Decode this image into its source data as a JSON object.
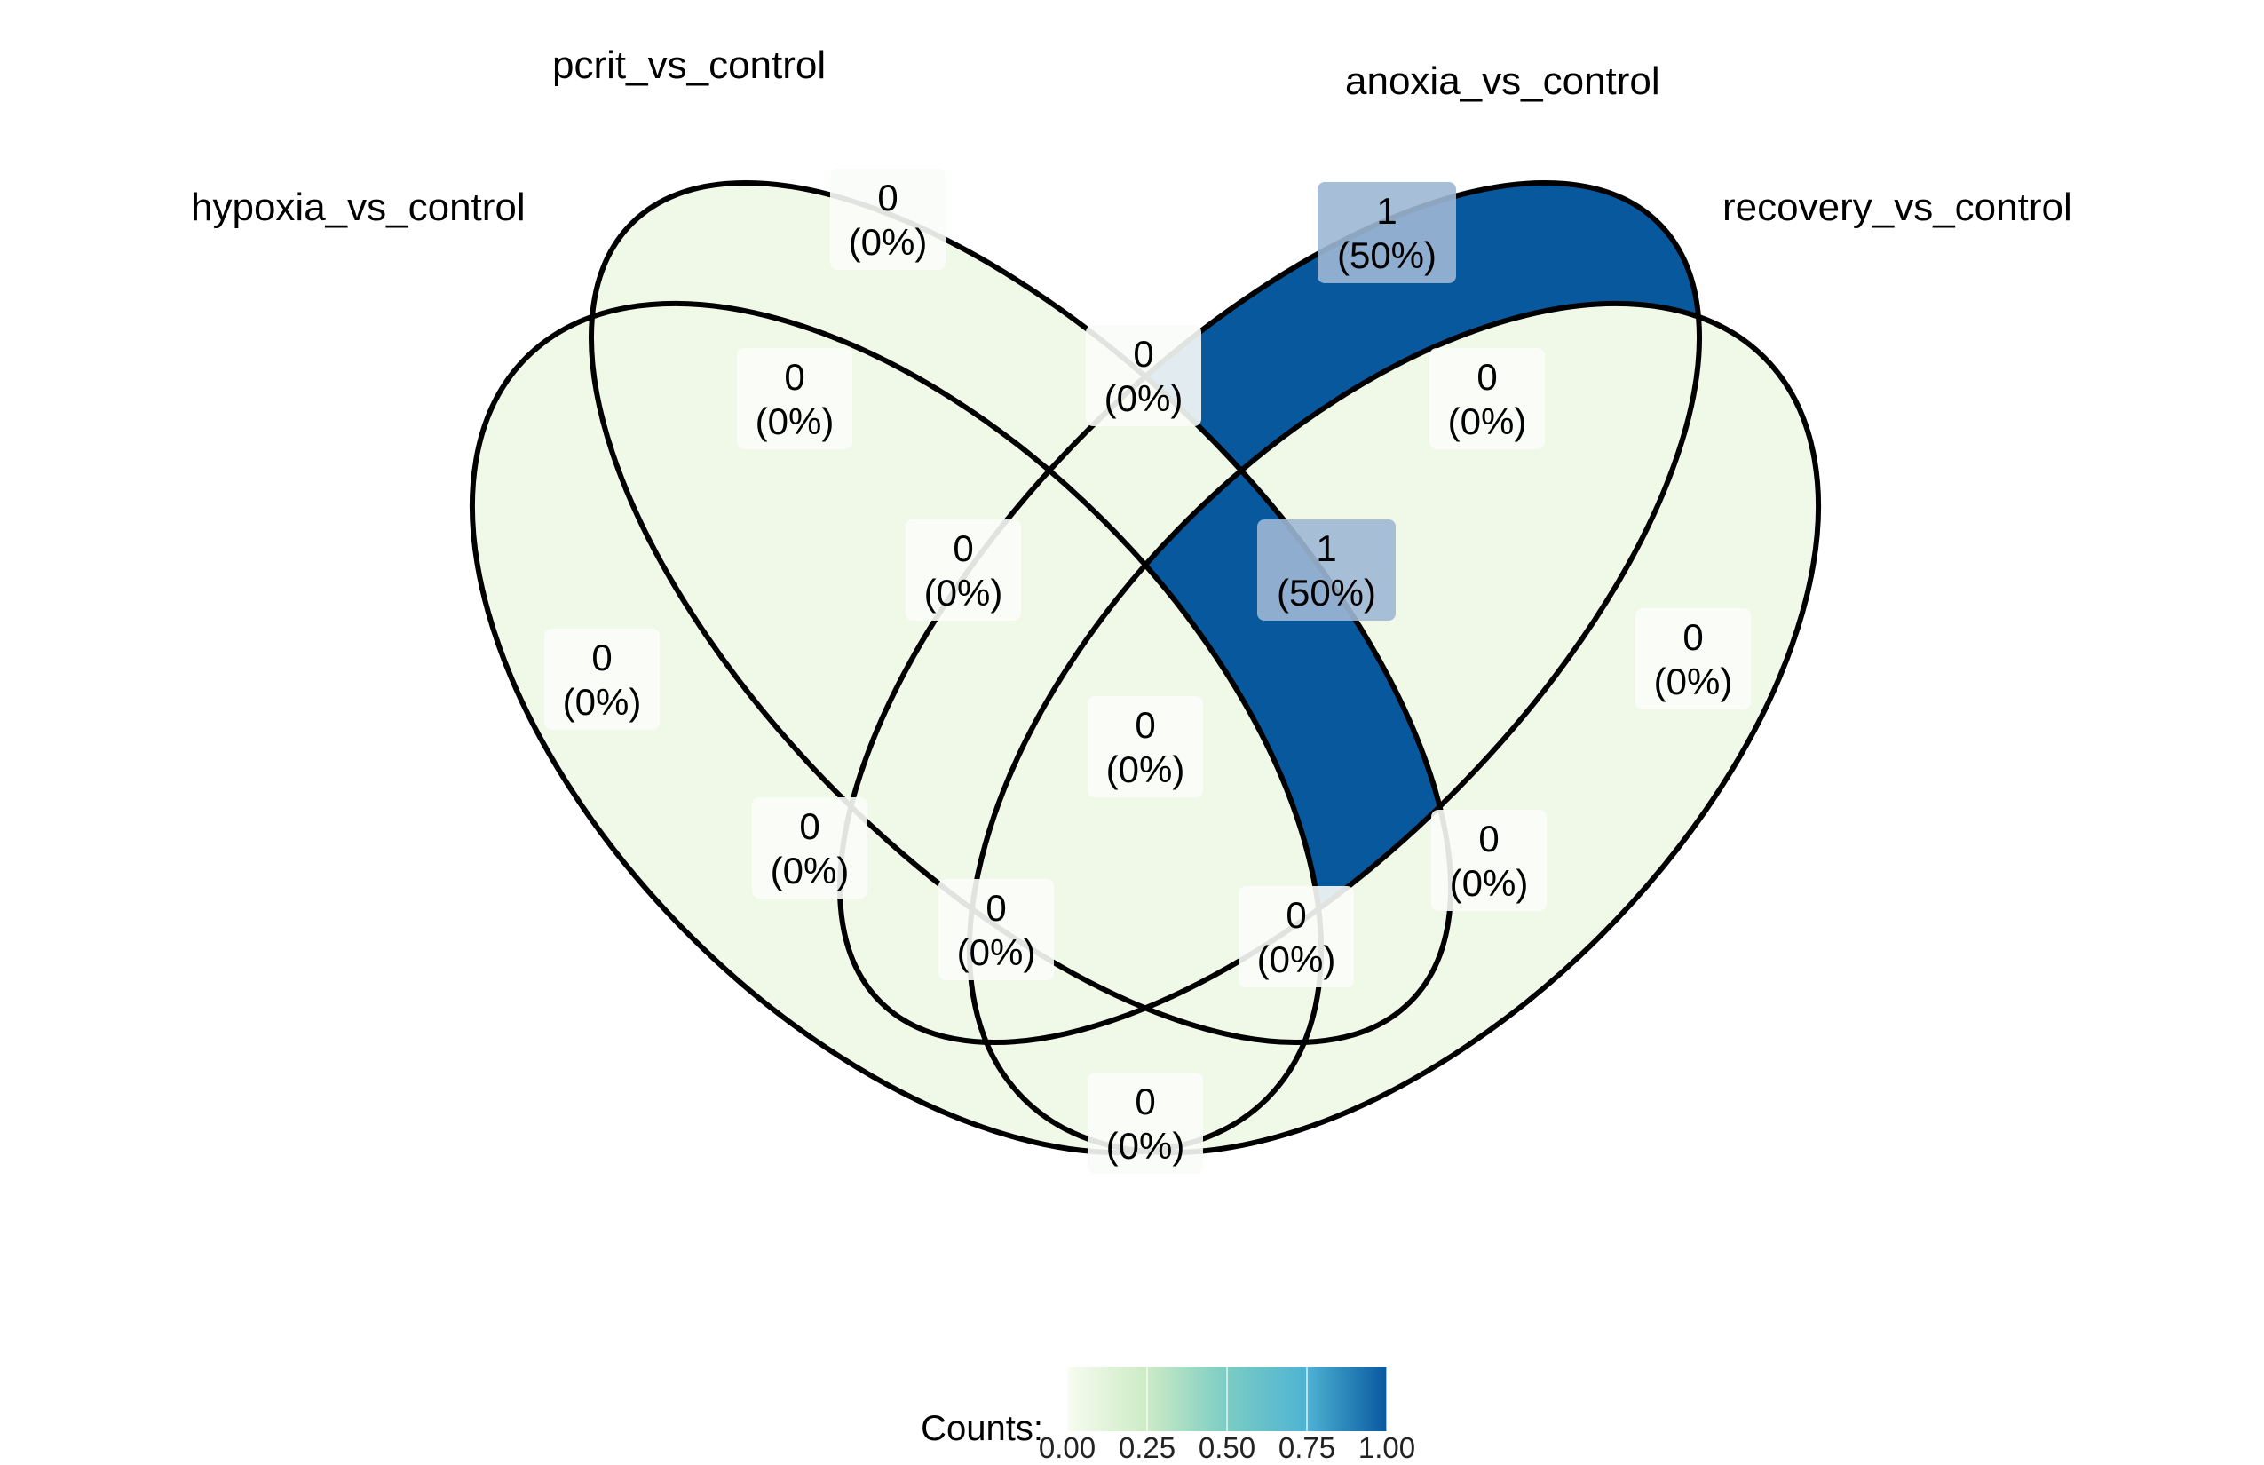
{
  "chart_data": {
    "type": "venn",
    "sets": [
      {
        "name": "hypoxia_vs_control"
      },
      {
        "name": "pcrit_vs_control"
      },
      {
        "name": "anoxia_vs_control"
      },
      {
        "name": "recovery_vs_control"
      }
    ],
    "regions": [
      {
        "key": "h",
        "sets": [
          "hypoxia_vs_control"
        ],
        "count": "0",
        "percent": "(0%)",
        "value": 0
      },
      {
        "key": "p",
        "sets": [
          "pcrit_vs_control"
        ],
        "count": "0",
        "percent": "(0%)",
        "value": 0
      },
      {
        "key": "a",
        "sets": [
          "anoxia_vs_control"
        ],
        "count": "1",
        "percent": "(50%)",
        "value": 1
      },
      {
        "key": "r",
        "sets": [
          "recovery_vs_control"
        ],
        "count": "0",
        "percent": "(0%)",
        "value": 0
      },
      {
        "key": "hp",
        "sets": [
          "hypoxia_vs_control",
          "pcrit_vs_control"
        ],
        "count": "0",
        "percent": "(0%)",
        "value": 0
      },
      {
        "key": "pa",
        "sets": [
          "pcrit_vs_control",
          "anoxia_vs_control"
        ],
        "count": "0",
        "percent": "(0%)",
        "value": 0
      },
      {
        "key": "ar",
        "sets": [
          "anoxia_vs_control",
          "recovery_vs_control"
        ],
        "count": "0",
        "percent": "(0%)",
        "value": 0
      },
      {
        "key": "hpa",
        "sets": [
          "hypoxia_vs_control",
          "pcrit_vs_control",
          "anoxia_vs_control"
        ],
        "count": "0",
        "percent": "(0%)",
        "value": 0
      },
      {
        "key": "par",
        "sets": [
          "pcrit_vs_control",
          "anoxia_vs_control",
          "recovery_vs_control"
        ],
        "count": "1",
        "percent": "(50%)",
        "value": 1
      },
      {
        "key": "hpar",
        "sets": [
          "hypoxia_vs_control",
          "pcrit_vs_control",
          "anoxia_vs_control",
          "recovery_vs_control"
        ],
        "count": "0",
        "percent": "(0%)",
        "value": 0
      },
      {
        "key": "ha",
        "sets": [
          "hypoxia_vs_control",
          "anoxia_vs_control"
        ],
        "count": "0",
        "percent": "(0%)",
        "value": 0
      },
      {
        "key": "pr",
        "sets": [
          "pcrit_vs_control",
          "recovery_vs_control"
        ],
        "count": "0",
        "percent": "(0%)",
        "value": 0
      },
      {
        "key": "har",
        "sets": [
          "hypoxia_vs_control",
          "anoxia_vs_control",
          "recovery_vs_control"
        ],
        "count": "0",
        "percent": "(0%)",
        "value": 0
      },
      {
        "key": "hpr",
        "sets": [
          "hypoxia_vs_control",
          "pcrit_vs_control",
          "recovery_vs_control"
        ],
        "count": "0",
        "percent": "(0%)",
        "value": 0
      },
      {
        "key": "hr",
        "sets": [
          "hypoxia_vs_control",
          "recovery_vs_control"
        ],
        "count": "0",
        "percent": "(0%)",
        "value": 0
      }
    ],
    "legend": {
      "title": "Counts:",
      "position": "bottom",
      "ticks": [
        "0.00",
        "0.25",
        "0.50",
        "0.75",
        "1.00"
      ],
      "range": [
        0,
        1
      ],
      "gradient": [
        "#f7fcf0",
        "#ccebc5",
        "#7bccc4",
        "#4eb3d3",
        "#2b8cbe",
        "#08589e"
      ]
    },
    "low_color": "#f0f8e8",
    "high_color": "#08589e"
  }
}
